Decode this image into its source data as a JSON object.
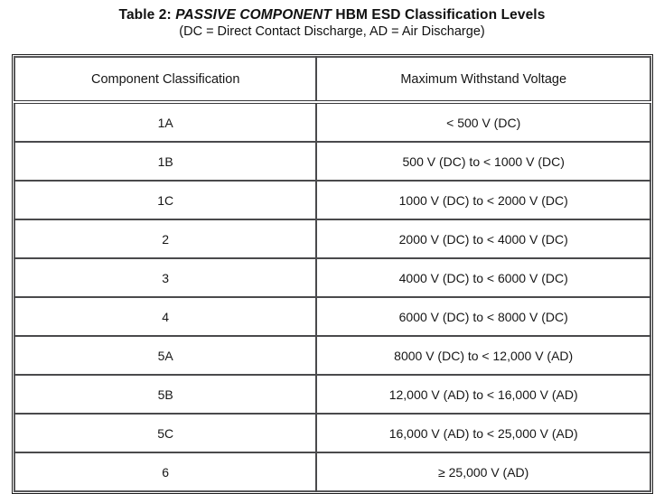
{
  "title": {
    "prefix": "Table 2: ",
    "emphasis": "PASSIVE COMPONENT",
    "suffix": " HBM ESD Classification Levels",
    "subtitle": "(DC = Direct Contact Discharge, AD = Air Discharge)"
  },
  "table": {
    "headers": [
      "Component Classification",
      "Maximum Withstand Voltage"
    ],
    "rows": [
      [
        "1A",
        "< 500 V (DC)"
      ],
      [
        "1B",
        "500 V (DC) to < 1000 V (DC)"
      ],
      [
        "1C",
        "1000 V (DC) to < 2000 V (DC)"
      ],
      [
        "2",
        "2000 V (DC) to < 4000 V (DC)"
      ],
      [
        "3",
        "4000 V (DC) to < 6000 V (DC)"
      ],
      [
        "4",
        "6000 V (DC) to < 8000 V (DC)"
      ],
      [
        "5A",
        "8000 V (DC) to < 12,000 V (AD)"
      ],
      [
        "5B",
        "12,000 V (AD) to < 16,000 V (AD)"
      ],
      [
        "5C",
        "16,000 V (AD) to < 25,000 V (AD)"
      ],
      [
        "6",
        "≥ 25,000 V (AD)"
      ]
    ]
  },
  "colors": {
    "outer_border_dark": "#1e1e1e",
    "inner_border_gray": "#4a4a4c",
    "text": "#161616"
  }
}
